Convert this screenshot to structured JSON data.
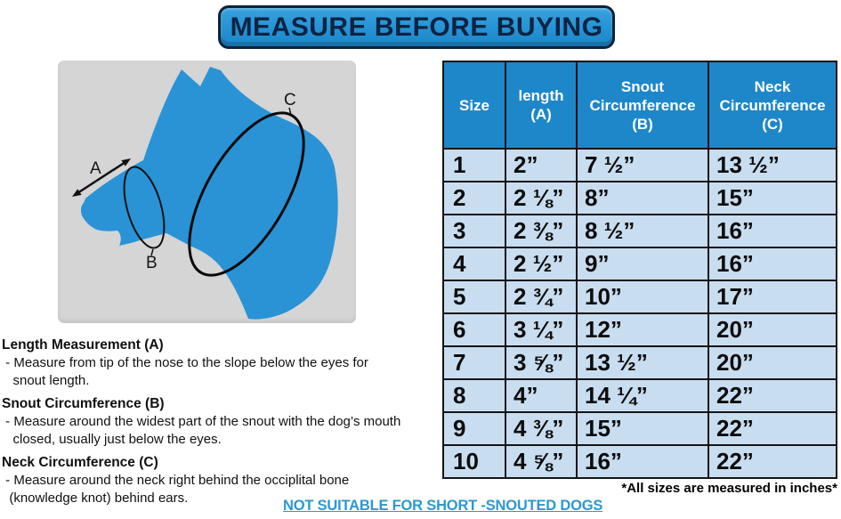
{
  "banner": {
    "label": "MEASURE BEFORE BUYING"
  },
  "diagram": {
    "label_a": "A",
    "label_b": "B",
    "label_c": "C"
  },
  "table": {
    "headers": [
      "Size",
      "length\n(A)",
      "Snout\nCircumference\n(B)",
      "Neck\nCircumference\n(C)"
    ],
    "rows": [
      [
        "1",
        "2”",
        "7 ½”",
        "13 ½”"
      ],
      [
        "2",
        "2 ⅛”",
        "8”",
        "15”"
      ],
      [
        "3",
        "2 ⅜”",
        "8 ½”",
        "16”"
      ],
      [
        "4",
        "2 ½”",
        "9”",
        "16”"
      ],
      [
        "5",
        "2 ¾”",
        "10”",
        "17”"
      ],
      [
        "6",
        "3 ¼”",
        "12”",
        "20”"
      ],
      [
        "7",
        "3 ⅝”",
        "13 ½”",
        "20”"
      ],
      [
        "8",
        "4”",
        "14 ¼”",
        "22”"
      ],
      [
        "9",
        "4 ⅜”",
        "15”",
        "22”"
      ],
      [
        "10",
        "4 ⅝”",
        "16”",
        "22”"
      ]
    ]
  },
  "instructions": [
    {
      "title": "Length Measurement (A)",
      "body": " - Measure from tip of the nose to the slope below the eyes for \n   snout length."
    },
    {
      "title": "Snout Circumference (B)",
      "body": " - Measure around the widest part of the snout with the dog’s mouth \n   closed, usually just below the eyes."
    },
    {
      "title": "Neck Circumference (C)",
      "body": " - Measure around the neck right behind the occiplital bone \n  (knowledge knot) behind ears."
    }
  ],
  "footnote": "*All sizes are measured in inches*",
  "warning": "NOT SUITABLE FOR SHORT -SNOUTED DOGS",
  "colors": {
    "header_blue": "#1e87c9",
    "row_blue": "#c9ddf0",
    "banner_blue": "#2492d4",
    "dog_blue": "#2a93d5",
    "link_blue": "#2f97cc",
    "panel_gray": "#d5d5d5"
  }
}
